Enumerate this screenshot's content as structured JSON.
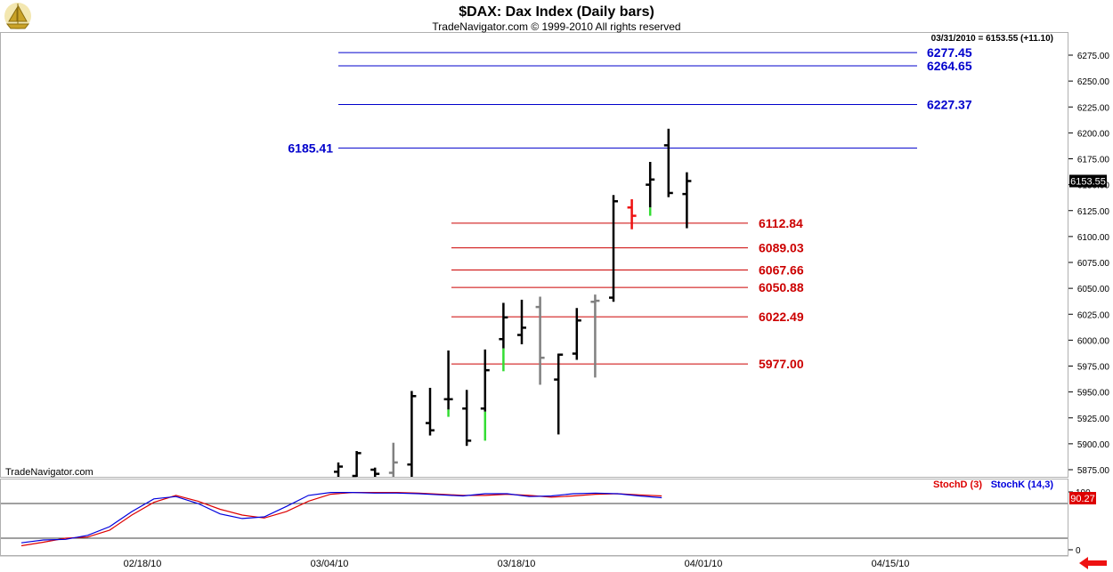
{
  "header": {
    "title": "$DAX:  Dax Index  (Daily bars)",
    "copyright": "TradeNavigator.com © 1999-2010 All rights reserved",
    "quote": "03/31/2010 = 6153.55 (+11.10)",
    "watermark": "TradeNavigator.com",
    "logo_icon": "sailboat-icon"
  },
  "chart_data": [
    {
      "type": "ohlc",
      "title": "$DAX:  Dax Index  (Daily bars)",
      "ylim": [
        5860,
        6295
      ],
      "y_ticks": [
        "6275.00",
        "6250.00",
        "6225.00",
        "6200.00",
        "6175.00",
        "6150.00",
        "6125.00",
        "6100.00",
        "6075.00",
        "6050.00",
        "6025.00",
        "6000.00",
        "5975.00",
        "5950.00",
        "5925.00",
        "5900.00",
        "5875.00"
      ],
      "y_tick_values": [
        6275,
        6250,
        6225,
        6200,
        6175,
        6150,
        6125,
        6100,
        6075,
        6050,
        6025,
        6000,
        5975,
        5950,
        5925,
        5900,
        5875
      ],
      "last_price_label": "6153.55",
      "last_price": 6153.55,
      "bars": [
        {
          "x": 0,
          "o": 5873,
          "h": 5882,
          "l": 5858,
          "c": 5878,
          "color": "#000000"
        },
        {
          "x": 1,
          "o": 5869,
          "h": 5893,
          "l": 5860,
          "c": 5891,
          "color": "#000000"
        },
        {
          "x": 2,
          "o": 5875,
          "h": 5877,
          "l": 5860,
          "c": 5871,
          "color": "#000000"
        },
        {
          "x": 3,
          "o": 5872,
          "h": 5901,
          "l": 5858,
          "c": 5882,
          "color": "#808080"
        },
        {
          "x": 4,
          "o": 5880,
          "h": 5951,
          "l": 5868,
          "c": 5946,
          "color": "#000000"
        },
        {
          "x": 5,
          "o": 5920,
          "h": 5954,
          "l": 5908,
          "c": 5913,
          "color": "#000000"
        },
        {
          "x": 6,
          "o": 5943,
          "h": 5990,
          "l": 5926,
          "c": 5943,
          "color": "#000000",
          "low_color": "#33dd33",
          "low_from": 5933
        },
        {
          "x": 7,
          "o": 5934,
          "h": 5952,
          "l": 5898,
          "c": 5903,
          "color": "#000000"
        },
        {
          "x": 8,
          "o": 5934,
          "h": 5991,
          "l": 5903,
          "c": 5971,
          "color": "#000000",
          "low_color": "#33dd33",
          "low_from": 5931
        },
        {
          "x": 9,
          "o": 6001,
          "h": 6036,
          "l": 5970,
          "c": 6022,
          "color": "#000000",
          "low_color": "#33dd33",
          "low_from": 5992
        },
        {
          "x": 10,
          "o": 6005,
          "h": 6039,
          "l": 5996,
          "c": 6012,
          "color": "#000000"
        },
        {
          "x": 11,
          "o": 6032,
          "h": 6042,
          "l": 5957,
          "c": 5983,
          "color": "#808080"
        },
        {
          "x": 12,
          "o": 5962,
          "h": 5987,
          "l": 5909,
          "c": 5986,
          "color": "#000000"
        },
        {
          "x": 13,
          "o": 5987,
          "h": 6031,
          "l": 5981,
          "c": 6019,
          "color": "#000000"
        },
        {
          "x": 14,
          "o": 6037,
          "h": 6044,
          "l": 5964,
          "c": 6038,
          "color": "#808080"
        },
        {
          "x": 15,
          "o": 6041,
          "h": 6140,
          "l": 6037,
          "c": 6134,
          "color": "#000000"
        },
        {
          "x": 16,
          "o": 6128,
          "h": 6136,
          "l": 6107,
          "c": 6120,
          "color": "#ee1111"
        },
        {
          "x": 17,
          "o": 6150,
          "h": 6172,
          "l": 6120,
          "c": 6155,
          "color": "#000000",
          "low_color": "#33dd33",
          "low_from": 6128
        },
        {
          "x": 18,
          "o": 6188,
          "h": 6204,
          "l": 6138,
          "c": 6142,
          "color": "#000000"
        },
        {
          "x": 19,
          "o": 6141,
          "h": 6162,
          "l": 6108,
          "c": 6153.55,
          "color": "#000000"
        }
      ],
      "resistance_levels": [
        {
          "value": 6277.45,
          "label": "6277.45",
          "color": "#0000cc"
        },
        {
          "value": 6264.65,
          "label": "6264.65",
          "color": "#0000cc"
        },
        {
          "value": 6227.37,
          "label": "6227.37",
          "color": "#0000cc"
        },
        {
          "value": 6185.41,
          "label": "6185.41",
          "color": "#0000cc"
        }
      ],
      "support_levels": [
        {
          "value": 6112.84,
          "label": "6112.84",
          "color": "#cc0000"
        },
        {
          "value": 6089.03,
          "label": "6089.03",
          "color": "#cc0000"
        },
        {
          "value": 6067.66,
          "label": "6067.66",
          "color": "#cc0000"
        },
        {
          "value": 6050.88,
          "label": "6050.88",
          "color": "#cc0000"
        },
        {
          "value": 6022.49,
          "label": "6022.49",
          "color": "#cc0000"
        },
        {
          "value": 5977.0,
          "label": "5977.00",
          "color": "#cc0000"
        }
      ]
    },
    {
      "type": "line",
      "title": "Stochastic",
      "ylim": [
        0,
        100
      ],
      "y_ticks": [
        "100",
        "0"
      ],
      "y_tick_values": [
        100,
        0
      ],
      "reference_lines": [
        80,
        20
      ],
      "last_value_label": "90.27",
      "legend": [
        "StochD (3)",
        "StochK (14,3)"
      ],
      "series": [
        {
          "name": "StochD (3)",
          "color": "#dd0000",
          "points": [
            [
              0,
              7
            ],
            [
              2,
              13
            ],
            [
              4,
              20
            ],
            [
              6,
              22
            ],
            [
              8,
              34
            ],
            [
              10,
              60
            ],
            [
              12,
              82
            ],
            [
              14,
              94
            ],
            [
              16,
              84
            ],
            [
              18,
              70
            ],
            [
              20,
              60
            ],
            [
              22,
              55
            ],
            [
              24,
              66
            ],
            [
              26,
              84
            ],
            [
              28,
              96
            ],
            [
              30,
              99
            ],
            [
              32,
              99
            ],
            [
              34,
              99
            ],
            [
              36,
              98
            ],
            [
              38,
              96
            ],
            [
              40,
              94
            ],
            [
              42,
              94
            ],
            [
              44,
              96
            ],
            [
              46,
              94
            ],
            [
              48,
              91
            ],
            [
              50,
              93
            ],
            [
              52,
              96
            ],
            [
              54,
              97
            ],
            [
              56,
              95
            ],
            [
              58,
              93
            ]
          ]
        },
        {
          "name": "StochK (14,3)",
          "color": "#0000dd",
          "points": [
            [
              0,
              12
            ],
            [
              2,
              17
            ],
            [
              4,
              18
            ],
            [
              6,
              25
            ],
            [
              8,
              40
            ],
            [
              10,
              66
            ],
            [
              12,
              88
            ],
            [
              14,
              92
            ],
            [
              16,
              80
            ],
            [
              18,
              62
            ],
            [
              20,
              54
            ],
            [
              22,
              57
            ],
            [
              24,
              75
            ],
            [
              26,
              94
            ],
            [
              28,
              99
            ],
            [
              30,
              99
            ],
            [
              32,
              98
            ],
            [
              34,
              98
            ],
            [
              36,
              97
            ],
            [
              38,
              95
            ],
            [
              40,
              93
            ],
            [
              42,
              97
            ],
            [
              44,
              97
            ],
            [
              46,
              92
            ],
            [
              48,
              93
            ],
            [
              50,
              97
            ],
            [
              52,
              98
            ],
            [
              54,
              97
            ],
            [
              56,
              93
            ],
            [
              58,
              90
            ]
          ]
        }
      ]
    }
  ],
  "x_axis": {
    "labels": [
      "02/18/10",
      "03/04/10",
      "03/18/10",
      "04/01/10",
      "04/15/10"
    ]
  },
  "nav": {
    "back_icon": "red-left-arrow-icon"
  }
}
